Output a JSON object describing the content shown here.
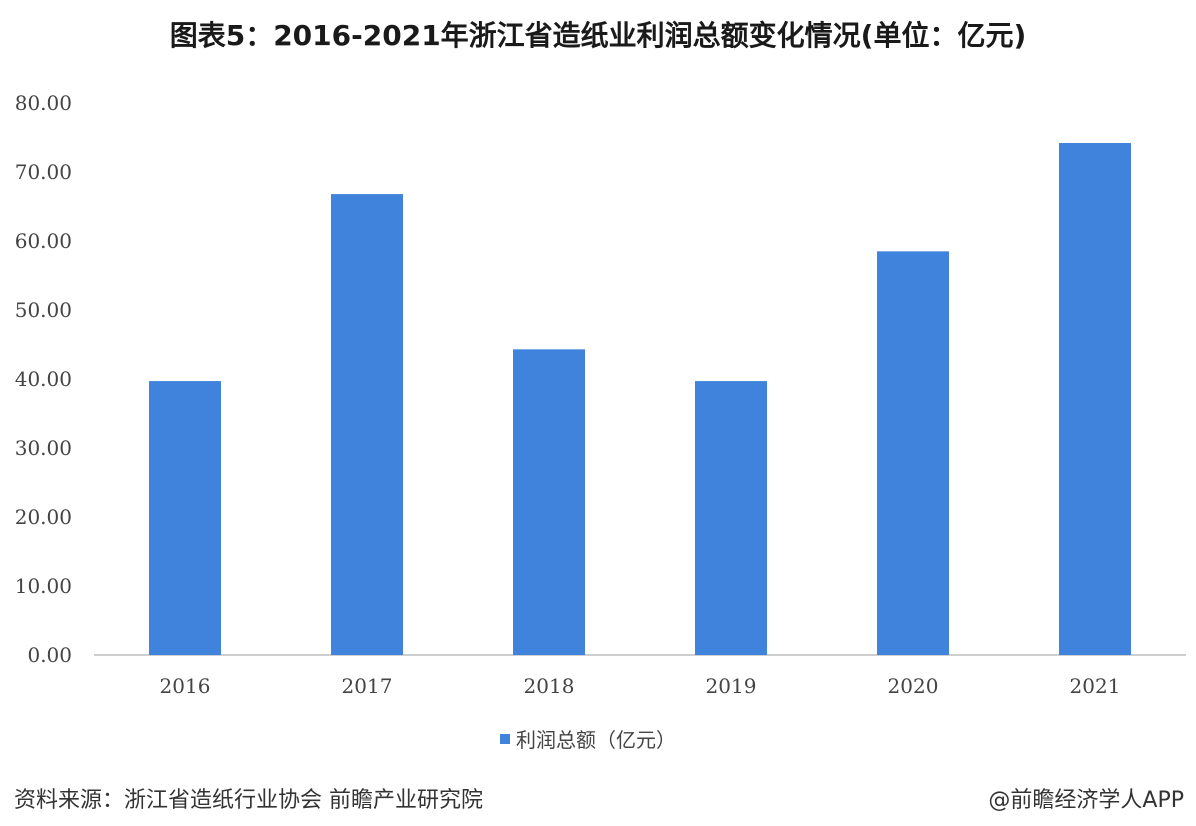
{
  "title": "图表5：2016-2021年浙江省造纸业利润总额变化情况(单位：亿元)",
  "source": "资料来源：浙江省造纸行业协会 前瞻产业研究院",
  "credit": "@前瞻经济学人APP",
  "colors": {
    "bar": "#3f83dd",
    "axis": "#bfbfbf",
    "text": "#444444"
  },
  "chart_data": {
    "type": "bar",
    "categories": [
      "2016",
      "2017",
      "2018",
      "2019",
      "2020",
      "2021"
    ],
    "series": [
      {
        "name": "利润总额（亿元）",
        "values": [
          39.7,
          66.8,
          44.3,
          39.7,
          58.5,
          74.2
        ]
      }
    ],
    "ylim": [
      0,
      80
    ],
    "yticks": [
      "0.00",
      "10.00",
      "20.00",
      "30.00",
      "40.00",
      "50.00",
      "60.00",
      "70.00",
      "80.00"
    ],
    "grid": false,
    "legend": "bottom"
  }
}
